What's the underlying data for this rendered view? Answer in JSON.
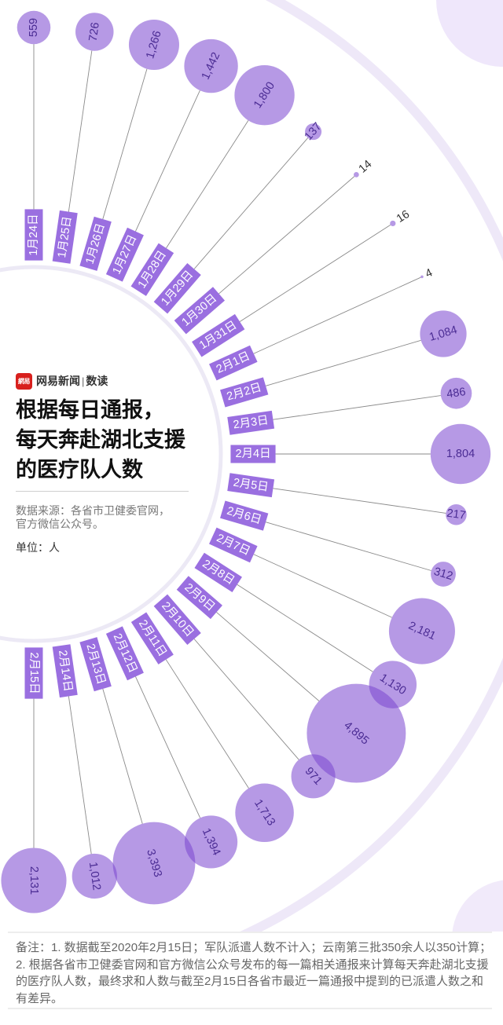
{
  "brand": {
    "logo_text": "網易",
    "name": "网易新闻",
    "separator": "|",
    "section": "数读"
  },
  "header": {
    "title_lines": [
      "根据每日通报，",
      "每天奔赴湖北支援",
      "的医疗队人数"
    ],
    "source_lines": [
      "数据来源：各省市卫健委官网，",
      "官方微信公众号。"
    ],
    "unit": "单位：人"
  },
  "footer": {
    "note_lines": [
      "备注：1. 数据截至2020年2月15日；军队派遣人数不计入；云南第三批350余人以350计算；",
      "2. 根据各省市卫健委官网和官方微信公众号发布的每一篇相关通报来计算每天奔赴湖北支援",
      "的医疗队人数，最终求和人数与截至2月15日各省市最近一篇通报中提到的已派遣人数之和",
      "有差异。"
    ]
  },
  "colors": {
    "label_fill": "#9a6fe0",
    "label_text": "#ffffff",
    "bubble_fill": "#7a45d0",
    "bubble_opacity": 0.55,
    "bubble_text": "#4b2c94",
    "outside_text": "#333333",
    "leader_line": "#8a8a8a",
    "decor_arc": "#eee8f8",
    "decor_circle": "#efe7fb",
    "logo_red": "#d8201d"
  },
  "chart_data": {
    "type": "scatter",
    "variant": "radial bubble chart (bubble area proportional to value)",
    "title": "根据每日通报，每天奔赴湖北支援的医疗队人数",
    "unit": "人",
    "source": "各省市卫健委官网，官方微信公众号",
    "categories": [
      "1月24日",
      "1月25日",
      "1月26日",
      "1月27日",
      "1月28日",
      "1月29日",
      "1月30日",
      "1月31日",
      "2月1日",
      "2月2日",
      "2月3日",
      "2月4日",
      "2月5日",
      "2月6日",
      "2月7日",
      "2月8日",
      "2月9日",
      "2月10日",
      "2月11日",
      "2月12日",
      "2月13日",
      "2月14日",
      "2月15日"
    ],
    "values": [
      559,
      726,
      1266,
      1442,
      1800,
      137,
      14,
      16,
      4,
      1084,
      486,
      1804,
      217,
      312,
      2181,
      1130,
      4895,
      971,
      1713,
      1394,
      3393,
      1012,
      2131
    ],
    "value_labels": [
      "559",
      "726",
      "1,266",
      "1,442",
      "1,800",
      "137",
      "14",
      "16",
      "4",
      "1,084",
      "486",
      "1,804",
      "217",
      "312",
      "2,181",
      "1,130",
      "4,895",
      "971",
      "1,713",
      "1,394",
      "3,393",
      "1,012",
      "2,131"
    ],
    "xlabel": "",
    "ylabel": "",
    "legend": "none",
    "grid": false
  }
}
